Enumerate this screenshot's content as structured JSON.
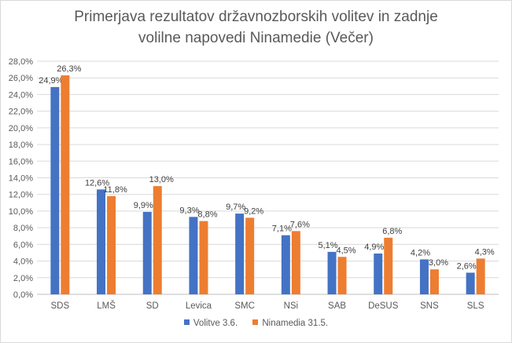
{
  "chart_data": {
    "type": "bar",
    "title_line1": "Primerjava rezultatov državnozborskih volitev in zadnje",
    "title_line2": "volilne napovedi Ninamedie (Večer)",
    "categories": [
      "SDS",
      "LMŠ",
      "SD",
      "Levica",
      "SMC",
      "NSi",
      "SAB",
      "DeSUS",
      "SNS",
      "SLS"
    ],
    "series": [
      {
        "name": "Volitve 3.6.",
        "color": "#4472c4",
        "values": [
          24.9,
          12.6,
          9.9,
          9.3,
          9.7,
          7.1,
          5.1,
          4.9,
          4.2,
          2.6
        ],
        "labels": [
          "24,9%",
          "12,6%",
          "9,9%",
          "9,3%",
          "9,7%",
          "7,1%",
          "5,1%",
          "4,9%",
          "4,2%",
          "2,6%"
        ]
      },
      {
        "name": "Ninamedia 31.5.",
        "color": "#ed7d31",
        "values": [
          26.3,
          11.8,
          13.0,
          8.8,
          9.2,
          7.6,
          4.5,
          6.8,
          3.0,
          4.3
        ],
        "labels": [
          "26,3%",
          "11,8%",
          "13,0%",
          "8,8%",
          "9,2%",
          "7,6%",
          "4,5%",
          "6,8%",
          "3,0%",
          "4,3%"
        ]
      }
    ],
    "ylim": [
      0,
      28
    ],
    "yticks": [
      "0,0%",
      "2,0%",
      "4,0%",
      "6,0%",
      "8,0%",
      "10,0%",
      "12,0%",
      "14,0%",
      "16,0%",
      "18,0%",
      "20,0%",
      "22,0%",
      "24,0%",
      "26,0%",
      "28,0%"
    ],
    "grid": true,
    "legend_position": "bottom"
  }
}
